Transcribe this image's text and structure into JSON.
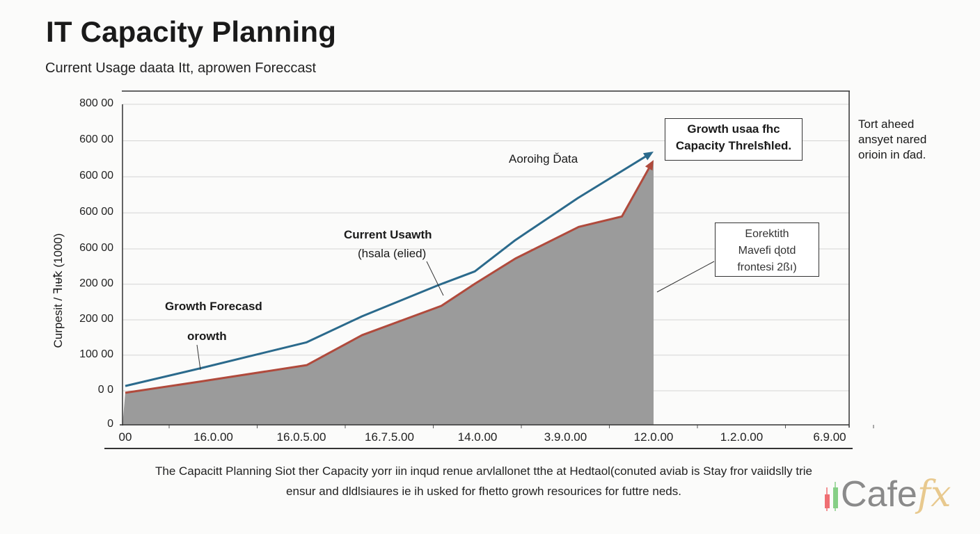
{
  "header": {
    "title": "IT Capacity Planning",
    "subtitle": "Current Usage daata Itt, aprowen Foreccast"
  },
  "chart_data": {
    "type": "area",
    "title": "IT Capacity Planning",
    "subtitle": "Current Usage daata Itt, aprowen Foreccast",
    "ylabel": "Curpesit / ꟻıᵾꝁ (1000)",
    "xlabel": "",
    "grid": true,
    "ylim": [
      0,
      800
    ],
    "yticks": [
      {
        "label": "0",
        "value": 0
      },
      {
        "label": "0  0",
        "value": 85
      },
      {
        "label": "100 00",
        "value": 174
      },
      {
        "label": "200 00",
        "value": 262
      },
      {
        "label": "200 00",
        "value": 351
      },
      {
        "label": "600 00",
        "value": 439
      },
      {
        "label": "600 00",
        "value": 529
      },
      {
        "label": "600 00",
        "value": 619
      },
      {
        "label": "600 00",
        "value": 709
      },
      {
        "label": "800 00",
        "value": 800
      }
    ],
    "categories": [
      "00",
      "16.0.00",
      "16.0.5.00",
      "16.7.5.00",
      "14.0.00",
      "3.9.0.00",
      "12.0.00",
      "1.2.0.00",
      "6.9.00"
    ],
    "series": [
      {
        "name": "Growth Forecast",
        "color": "#2b6a8c",
        "style": "line-arrow",
        "points": [
          [
            0,
            97
          ],
          [
            0.85,
            141
          ],
          [
            2.06,
            206
          ],
          [
            2.69,
            271
          ],
          [
            3.56,
            349
          ],
          [
            3.97,
            383
          ],
          [
            4.43,
            461
          ],
          [
            5.14,
            566
          ],
          [
            6.0,
            682
          ]
        ]
      },
      {
        "name": "Current Usage",
        "color": "#b04a3c",
        "fill": "#9b9b9b",
        "style": "area-arrow",
        "points": [
          [
            0,
            80
          ],
          [
            0.85,
            108
          ],
          [
            2.06,
            149
          ],
          [
            2.69,
            224
          ],
          [
            3.59,
            297
          ],
          [
            3.97,
            352
          ],
          [
            4.43,
            415
          ],
          [
            5.15,
            494
          ],
          [
            5.64,
            520
          ],
          [
            6.0,
            661
          ]
        ]
      }
    ],
    "annotations": {
      "growth_forecast": "Growth Forecasd",
      "growth": "orowth",
      "current_usage_1": "Current Usawth",
      "current_usage_2": "(hsala (elied)",
      "archiving_data": "Aoroihg Ďata",
      "threshold_1": "Growth usaa fhc",
      "threshold_2": "Capacity Threlsħled.",
      "forecast_1": "Eorektith",
      "forecast_2": "Mavefi ɖotd",
      "forecast_3": "frontesi 2ßı)"
    }
  },
  "side_note": [
    "Tort aheed",
    "ansyet nared",
    "orioin in ɗad."
  ],
  "footer": {
    "line1": "The Capacitt Planning Siot ther Capacity yorr iin inqud renue arvlallonet tthe at Hedtaol(conuted aviab is Stay fror vaiidslly trie",
    "line2": "ensur and dldlsiaures ie ih usked for fhetto growh resourices for futtre neds."
  },
  "logo": {
    "text": "Cafe",
    "accent": "fx",
    "candle_colors": [
      "#ef6f73",
      "#86cf86"
    ]
  }
}
